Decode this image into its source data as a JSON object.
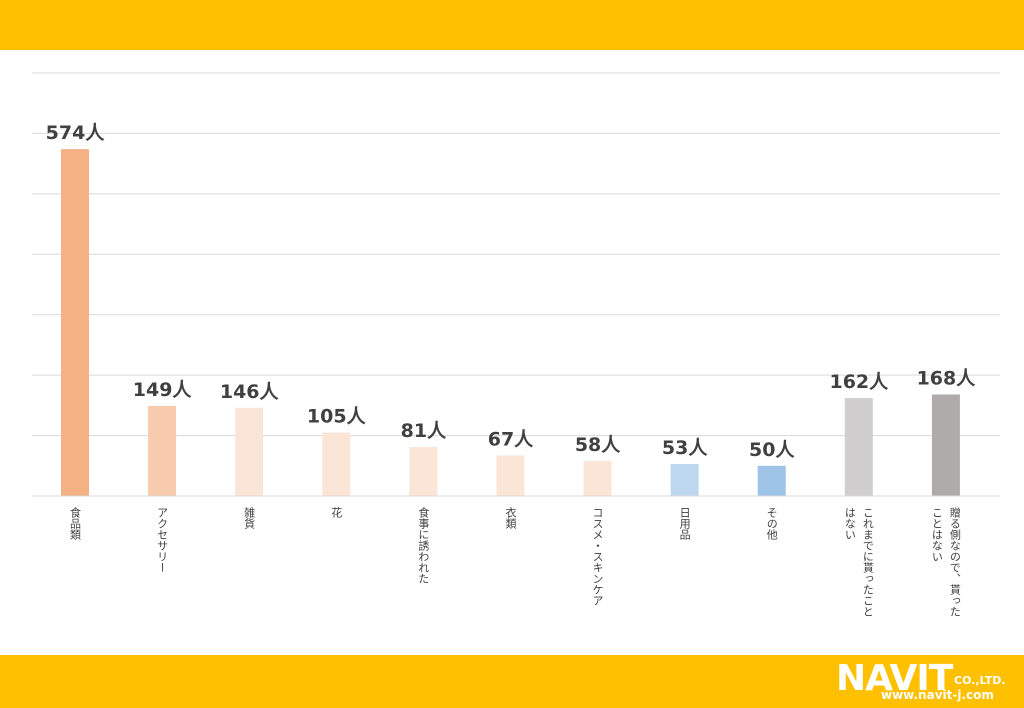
{
  "chart_data": {
    "type": "bar",
    "unit_suffix": "人",
    "categories": [
      [
        "食品類"
      ],
      [
        "アクセサリー"
      ],
      [
        "雑貨"
      ],
      [
        "花"
      ],
      [
        "食事に誘われた"
      ],
      [
        "衣類"
      ],
      [
        "コスメ・スキンケア"
      ],
      [
        "日用品"
      ],
      [
        "その他"
      ],
      [
        "これまでに貰ったこと",
        "はない"
      ],
      [
        "贈る側なので、貰った",
        "ことはない"
      ]
    ],
    "values": [
      574,
      149,
      146,
      105,
      81,
      67,
      58,
      53,
      50,
      162,
      168
    ],
    "data_labels": [
      "574人",
      "149人",
      "146人",
      "105人",
      "81人",
      "67人",
      "58人",
      "53人",
      "50人",
      "162人",
      "168人"
    ],
    "colors": [
      "#F4B183",
      "#F8CBAD",
      "#FBE5D6",
      "#FBE5D6",
      "#FBE5D6",
      "#FBE5D6",
      "#FBE5D6",
      "#BDD7EE",
      "#9DC3E6",
      "#D0CECE",
      "#AFABAB"
    ],
    "ylim": [
      0,
      700
    ],
    "grid": true
  },
  "logo": {
    "word": "NAVIT",
    "suffix": "CO.,LTD.",
    "url": "www.navit-j.com"
  },
  "colors": {
    "band": "#FFC000",
    "label": "#404040",
    "grid": "#D9D9D9"
  }
}
